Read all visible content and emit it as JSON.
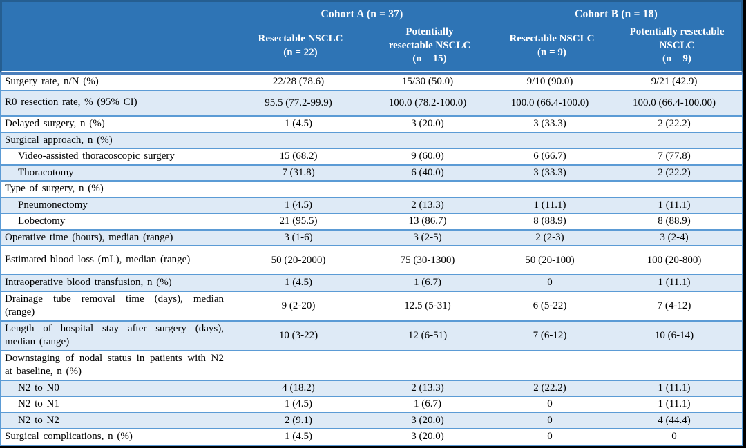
{
  "table": {
    "cohorts": [
      {
        "label": "Cohort A (n = 37)"
      },
      {
        "label": "Cohort B (n = 18)"
      }
    ],
    "columns": [
      {
        "label": "Resectable NSCLC\n(n = 22)"
      },
      {
        "label": "Potentially\nresectable NSCLC\n(n = 15)"
      },
      {
        "label": "Resectable NSCLC\n(n = 9)"
      },
      {
        "label": "Potentially resectable\nNSCLC\n(n = 9)"
      }
    ],
    "rows": [
      {
        "label": "Surgery rate, n/N (%)",
        "indent": false,
        "values": [
          "22/28 (78.6)",
          "15/30 (50.0)",
          "9/10 (90.0)",
          "9/21 (42.9)"
        ]
      },
      {
        "label": "R0 resection rate, % (95% CI)",
        "indent": false,
        "values": [
          "95.5 (77.2-99.9)",
          "100.0 (78.2-100.0)",
          "100.0 (66.4-100.0)",
          "100.0 (66.4-100.00)"
        ]
      },
      {
        "label": "Delayed surgery, n (%)",
        "indent": false,
        "values": [
          "1 (4.5)",
          "3 (20.0)",
          "3 (33.3)",
          "2 (22.2)"
        ]
      },
      {
        "label": "Surgical approach, n (%)",
        "indent": false,
        "values": [
          "",
          "",
          "",
          ""
        ]
      },
      {
        "label": "Video-assisted thoracoscopic surgery",
        "indent": true,
        "values": [
          "15 (68.2)",
          "9 (60.0)",
          "6 (66.7)",
          "7 (77.8)"
        ]
      },
      {
        "label": "Thoracotomy",
        "indent": true,
        "values": [
          "7 (31.8)",
          "6 (40.0)",
          "3 (33.3)",
          "2 (22.2)"
        ]
      },
      {
        "label": "Type of surgery, n (%)",
        "indent": false,
        "values": [
          "",
          "",
          "",
          ""
        ]
      },
      {
        "label": "Pneumonectomy",
        "indent": true,
        "values": [
          "1 (4.5)",
          "2 (13.3)",
          "1 (11.1)",
          "1 (11.1)"
        ]
      },
      {
        "label": "Lobectomy",
        "indent": true,
        "values": [
          "21 (95.5)",
          "13 (86.7)",
          "8 (88.9)",
          "8 (88.9)"
        ]
      },
      {
        "label": "Operative time (hours), median (range)",
        "indent": false,
        "values": [
          "3 (1-6)",
          "3 (2-5)",
          "2 (2-3)",
          "3 (2-4)"
        ]
      },
      {
        "label": "Estimated blood loss (mL), median (range)",
        "indent": false,
        "values": [
          "50 (20-2000)",
          "75 (30-1300)",
          "50 (20-100)",
          "100 (20-800)"
        ]
      },
      {
        "label": "Intraoperative blood transfusion, n (%)",
        "indent": false,
        "values": [
          "1 (4.5)",
          "1 (6.7)",
          "0",
          "1 (11.1)"
        ]
      },
      {
        "label": "Drainage tube removal time (days), median (range)",
        "indent": false,
        "values": [
          "9 (2-20)",
          "12.5 (5-31)",
          "6 (5-22)",
          "7 (4-12)"
        ]
      },
      {
        "label": "Length of hospital stay after surgery (days), median (range)",
        "indent": false,
        "values": [
          "10 (3-22)",
          "12 (6-51)",
          "7 (6-12)",
          "10 (6-14)"
        ]
      },
      {
        "label": "Downstaging of nodal status in patients with N2 at baseline, n (%)",
        "indent": false,
        "values": [
          "",
          "",
          "",
          ""
        ]
      },
      {
        "label": "N2 to N0",
        "indent": true,
        "values": [
          "4 (18.2)",
          "2 (13.3)",
          "2 (22.2)",
          "1 (11.1)"
        ]
      },
      {
        "label": "N2 to N1",
        "indent": true,
        "values": [
          "1 (4.5)",
          "1 (6.7)",
          "0",
          "1 (11.1)"
        ]
      },
      {
        "label": "N2 to N2",
        "indent": true,
        "values": [
          "2 (9.1)",
          "3 (20.0)",
          "0",
          "4 (44.4)"
        ]
      },
      {
        "label": "Surgical complications, n (%)",
        "indent": false,
        "values": [
          "1 (4.5)",
          "3 (20.0)",
          "0",
          "0"
        ]
      }
    ]
  },
  "colors": {
    "header_background": "#2E74B5",
    "header_border": "#255E91",
    "header_text": "#FFFFFF",
    "alt_row_background": "#DEEAF6",
    "row_border": "#5B9BD5",
    "body_text": "#000000",
    "page_margin": "#000000"
  }
}
